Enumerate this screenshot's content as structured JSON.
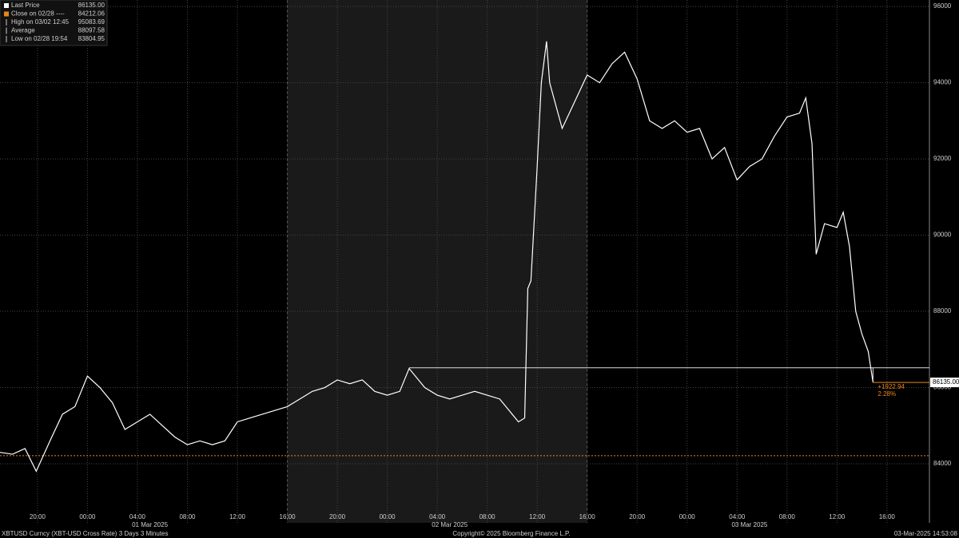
{
  "chart_data": {
    "type": "line",
    "legend": [
      {
        "label": "Last Price",
        "value": "86135.00"
      },
      {
        "label": "Close on 02/28 ----",
        "value": "84212.06"
      },
      {
        "label": "High on 03/02 12:45",
        "value": "95083.69"
      },
      {
        "label": "Average",
        "value": "88097.58"
      },
      {
        "label": "Low on 02/28 19:54",
        "value": "83804.95"
      }
    ],
    "series": [
      {
        "name": "XBTUSD Curncy",
        "color": "#ffffff",
        "x": [
          "2025-02-28T17:00",
          "2025-02-28T18:00",
          "2025-02-28T19:00",
          "2025-02-28T19:54",
          "2025-02-28T21:00",
          "2025-02-28T22:00",
          "2025-02-28T23:00",
          "2025-03-01T00:00",
          "2025-03-01T01:00",
          "2025-03-01T02:00",
          "2025-03-01T03:00",
          "2025-03-01T04:00",
          "2025-03-01T05:00",
          "2025-03-01T06:00",
          "2025-03-01T07:00",
          "2025-03-01T08:00",
          "2025-03-01T09:00",
          "2025-03-01T10:00",
          "2025-03-01T11:00",
          "2025-03-01T12:00",
          "2025-03-01T13:00",
          "2025-03-01T14:00",
          "2025-03-01T15:00",
          "2025-03-01T16:00",
          "2025-03-01T17:00",
          "2025-03-01T18:00",
          "2025-03-01T19:00",
          "2025-03-01T20:00",
          "2025-03-01T21:00",
          "2025-03-01T22:00",
          "2025-03-01T23:00",
          "2025-03-02T00:00",
          "2025-03-02T01:00",
          "2025-03-02T01:45",
          "2025-03-02T03:00",
          "2025-03-02T04:00",
          "2025-03-02T05:00",
          "2025-03-02T06:00",
          "2025-03-02T07:00",
          "2025-03-02T08:00",
          "2025-03-02T09:00",
          "2025-03-02T10:00",
          "2025-03-02T10:30",
          "2025-03-02T11:00",
          "2025-03-02T11:15",
          "2025-03-02T11:30",
          "2025-03-02T12:00",
          "2025-03-02T12:20",
          "2025-03-02T12:45",
          "2025-03-02T13:00",
          "2025-03-02T14:00",
          "2025-03-02T15:00",
          "2025-03-02T16:00",
          "2025-03-02T17:00",
          "2025-03-02T18:00",
          "2025-03-02T19:00",
          "2025-03-02T20:00",
          "2025-03-02T21:00",
          "2025-03-02T22:00",
          "2025-03-02T23:00",
          "2025-03-03T00:00",
          "2025-03-03T01:00",
          "2025-03-03T02:00",
          "2025-03-03T03:00",
          "2025-03-03T04:00",
          "2025-03-03T05:00",
          "2025-03-03T06:00",
          "2025-03-03T07:00",
          "2025-03-03T08:00",
          "2025-03-03T09:00",
          "2025-03-03T09:30",
          "2025-03-03T10:00",
          "2025-03-03T10:20",
          "2025-03-03T11:00",
          "2025-03-03T12:00",
          "2025-03-03T12:30",
          "2025-03-03T13:00",
          "2025-03-03T13:30",
          "2025-03-03T14:00",
          "2025-03-03T14:30",
          "2025-03-03T14:53"
        ],
        "values": [
          84300,
          84250,
          84400,
          83805,
          84600,
          85300,
          85500,
          86300,
          86000,
          85600,
          84900,
          85100,
          85300,
          85000,
          84700,
          84500,
          84600,
          84500,
          84600,
          85100,
          85200,
          85300,
          85400,
          85500,
          85700,
          85900,
          86000,
          86200,
          86100,
          86200,
          85900,
          85800,
          85900,
          86500,
          86000,
          85800,
          85700,
          85800,
          85900,
          85800,
          85700,
          85300,
          85100,
          85200,
          88600,
          88800,
          91800,
          94000,
          95084,
          94000,
          92800,
          93500,
          94200,
          94000,
          94500,
          94800,
          94100,
          93000,
          92800,
          93000,
          92700,
          92800,
          92000,
          92300,
          91450,
          91800,
          92000,
          92600,
          93100,
          93200,
          93600,
          92400,
          89500,
          90300,
          90200,
          90600,
          89700,
          88000,
          87400,
          86950,
          86135
        ]
      }
    ],
    "xlim": [
      "2025-02-28T17:00",
      "2025-03-03T19:24"
    ],
    "xticks": [
      {
        "value": "2025-02-28T20:00",
        "label": "20:00"
      },
      {
        "value": "2025-03-01T00:00",
        "label": "00:00"
      },
      {
        "value": "2025-03-01T04:00",
        "label": "04:00"
      },
      {
        "value": "2025-03-01T08:00",
        "label": "08:00"
      },
      {
        "value": "2025-03-01T12:00",
        "label": "12:00"
      },
      {
        "value": "2025-03-01T16:00",
        "label": "16:00"
      },
      {
        "value": "2025-03-01T20:00",
        "label": "20:00"
      },
      {
        "value": "2025-03-02T00:00",
        "label": "00:00"
      },
      {
        "value": "2025-03-02T04:00",
        "label": "04:00"
      },
      {
        "value": "2025-03-02T08:00",
        "label": "08:00"
      },
      {
        "value": "2025-03-02T12:00",
        "label": "12:00"
      },
      {
        "value": "2025-03-02T16:00",
        "label": "16:00"
      },
      {
        "value": "2025-03-02T20:00",
        "label": "20:00"
      },
      {
        "value": "2025-03-03T00:00",
        "label": "00:00"
      },
      {
        "value": "2025-03-03T04:00",
        "label": "04:00"
      },
      {
        "value": "2025-03-03T08:00",
        "label": "08:00"
      },
      {
        "value": "2025-03-03T12:00",
        "label": "12:00"
      },
      {
        "value": "2025-03-03T16:00",
        "label": "16:00"
      }
    ],
    "date_labels": [
      {
        "value": "2025-03-01T05:00",
        "label": "01 Mar 2025"
      },
      {
        "value": "2025-03-02T05:00",
        "label": "02 Mar 2025"
      },
      {
        "value": "2025-03-03T05:00",
        "label": "03 Mar 2025"
      }
    ],
    "ylim": [
      82450,
      96170
    ],
    "yticks": [
      84000,
      86000,
      88000,
      90000,
      92000,
      94000,
      96000
    ],
    "grid": true,
    "shaded": [
      "2025-03-01T16:00",
      "2025-03-02T16:00"
    ],
    "close_line": {
      "value": 84212.06,
      "color": "#e8861a"
    },
    "reference_line": {
      "value": 86520,
      "from": "2025-03-02T01:45"
    },
    "last_price": {
      "value": 86135,
      "label": "86135.00"
    },
    "change": {
      "value": 1922.94,
      "label": "+1922.94",
      "pct": 2.28,
      "pct_label": "2.28%",
      "color": "#e8861a"
    },
    "footer_left": "XBTUSD Curncy (XBT-USD Cross Rate) 3 Days 3 Minutes",
    "footer_center": "Copyright© 2025 Bloomberg Finance L.P.",
    "footer_right": "03-Mar-2025 14:53:08"
  }
}
